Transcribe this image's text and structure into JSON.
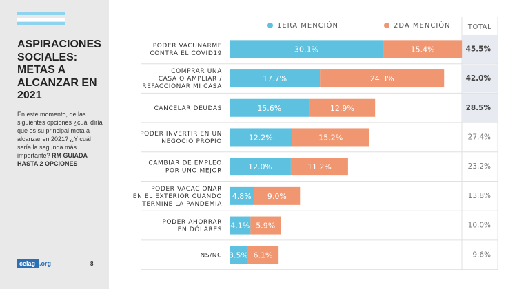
{
  "left_panel": {
    "title_lines": [
      "ASPIRACIONES",
      "SOCIALES:",
      "METAS A",
      "ALCANZAR EN",
      "2021"
    ],
    "question": "En este momento, de las siguientes opciones ¿cuál diría que es su principal meta a alcanzar en 2021? ¿Y cuál sería la segunda más importante?",
    "instruction": "RM GUIADA HASTA 2 OPCIONES",
    "logo_main": "celag",
    "logo_suffix": ".org",
    "page_number": "8"
  },
  "chart_data": {
    "type": "stacked-bar-horizontal",
    "categories": [
      [
        "PODER VACUNARME",
        "CONTRA EL COVID19"
      ],
      [
        "COMPRAR UNA",
        "CASA O AMPLIAR /",
        "REFACCIONAR MI CASA"
      ],
      [
        "CANCELAR DEUDAS"
      ],
      [
        "PODER INVERTIR EN UN",
        "NEGOCIO PROPIO"
      ],
      [
        "CAMBIAR DE EMPLEO",
        "POR UNO MEJOR"
      ],
      [
        "PODER VACACIONAR",
        "EN EL EXTERIOR CUANDO",
        "TERMINE LA PANDEMIA"
      ],
      [
        "PODER AHORRAR",
        "EN DÓLARES"
      ],
      [
        "NS/NC"
      ]
    ],
    "series": [
      {
        "name": "1ERA MENCIÓN",
        "color": "#5ec1df",
        "values": [
          30.1,
          17.7,
          15.6,
          12.2,
          12.0,
          4.8,
          4.1,
          3.5
        ],
        "value_labels": [
          "30.1%",
          "17.7%",
          "15.6%",
          "12.2%",
          "12.0%",
          "4.8%",
          "4.1%",
          "3.5%"
        ]
      },
      {
        "name": "2DA MENCIÓN",
        "color": "#f09670",
        "values": [
          15.4,
          24.3,
          12.9,
          15.2,
          11.2,
          9.0,
          5.9,
          6.1
        ],
        "value_labels": [
          "15.4%",
          "24.3%",
          "12.9%",
          "15.2%",
          "11.2%",
          "9.0%",
          "5.9%",
          "6.1%"
        ]
      }
    ],
    "total": {
      "name": "TOTAL",
      "values": [
        45.5,
        42.0,
        28.5,
        27.4,
        23.2,
        13.8,
        10.0,
        9.6
      ],
      "value_labels": [
        "45.5%",
        "42.0%",
        "28.5%",
        "27.4%",
        "23.2%",
        "13.8%",
        "10.0%",
        "9.6%"
      ],
      "highlight": [
        true,
        true,
        true,
        false,
        false,
        false,
        false,
        false
      ]
    }
  }
}
